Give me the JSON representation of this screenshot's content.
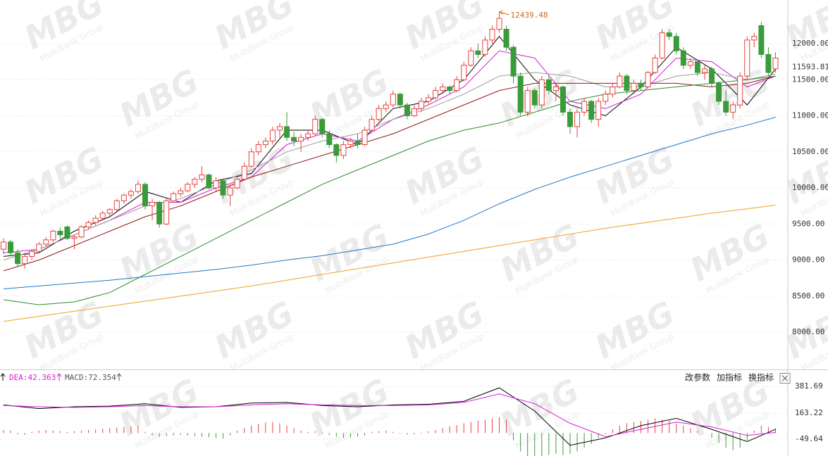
{
  "chart_data": [
    {
      "type": "candlestick",
      "candles": [
        [
          9150,
          9300,
          9080,
          9250
        ],
        [
          9250,
          9280,
          9050,
          9100
        ],
        [
          9100,
          9150,
          8900,
          8950
        ],
        [
          8950,
          9100,
          8880,
          9050
        ],
        [
          9050,
          9150,
          9000,
          9120
        ],
        [
          9120,
          9250,
          9100,
          9220
        ],
        [
          9220,
          9320,
          9180,
          9280
        ],
        [
          9280,
          9420,
          9250,
          9400
        ],
        [
          9400,
          9450,
          9300,
          9350
        ],
        [
          9460,
          9480,
          9280,
          9300
        ],
        [
          9300,
          9350,
          9150,
          9320
        ],
        [
          9320,
          9480,
          9300,
          9460
        ],
        [
          9460,
          9550,
          9420,
          9520
        ],
        [
          9520,
          9620,
          9480,
          9580
        ],
        [
          9580,
          9680,
          9550,
          9650
        ],
        [
          9650,
          9720,
          9600,
          9700
        ],
        [
          9700,
          9850,
          9680,
          9820
        ],
        [
          9820,
          9920,
          9780,
          9900
        ],
        [
          9900,
          9980,
          9850,
          9950
        ],
        [
          9950,
          10100,
          9920,
          10050
        ],
        [
          10050,
          10080,
          9700,
          9750
        ],
        [
          9750,
          9850,
          9550,
          9800
        ],
        [
          9800,
          9820,
          9450,
          9500
        ],
        [
          9500,
          9850,
          9480,
          9820
        ],
        [
          9820,
          9950,
          9800,
          9920
        ],
        [
          9920,
          10000,
          9880,
          9960
        ],
        [
          9960,
          10080,
          9940,
          10050
        ],
        [
          10050,
          10150,
          10000,
          10120
        ],
        [
          10120,
          10300,
          10080,
          10180
        ],
        [
          10180,
          10200,
          9980,
          10000
        ],
        [
          10000,
          10150,
          9950,
          10100
        ],
        [
          10100,
          10120,
          9850,
          9900
        ],
        [
          9900,
          10050,
          9750,
          10000
        ],
        [
          10000,
          10150,
          9980,
          10120
        ],
        [
          10120,
          10350,
          10100,
          10300
        ],
        [
          10300,
          10550,
          10280,
          10500
        ],
        [
          10500,
          10650,
          10450,
          10600
        ],
        [
          10600,
          10700,
          10550,
          10650
        ],
        [
          10650,
          10850,
          10600,
          10800
        ],
        [
          10800,
          10900,
          10700,
          10850
        ],
        [
          10850,
          11050,
          10650,
          10700
        ],
        [
          10700,
          10780,
          10580,
          10650
        ],
        [
          10650,
          10750,
          10500,
          10700
        ],
        [
          10700,
          10800,
          10650,
          10750
        ],
        [
          10750,
          11000,
          10720,
          10950
        ],
        [
          10950,
          10980,
          10700,
          10750
        ],
        [
          10750,
          10800,
          10550,
          10600
        ],
        [
          10600,
          10620,
          10350,
          10450
        ],
        [
          10450,
          10650,
          10400,
          10600
        ],
        [
          10600,
          10700,
          10550,
          10650
        ],
        [
          10650,
          10750,
          10550,
          10600
        ],
        [
          10600,
          10850,
          10580,
          10800
        ],
        [
          10800,
          11000,
          10780,
          10950
        ],
        [
          10950,
          11150,
          10920,
          11100
        ],
        [
          11100,
          11200,
          11050,
          11150
        ],
        [
          11150,
          11350,
          11120,
          11300
        ],
        [
          11300,
          11320,
          11100,
          11150
        ],
        [
          11150,
          11180,
          10950,
          11000
        ],
        [
          11000,
          11150,
          10980,
          11100
        ],
        [
          11100,
          11250,
          11050,
          11200
        ],
        [
          11200,
          11300,
          11150,
          11250
        ],
        [
          11250,
          11400,
          11220,
          11350
        ],
        [
          11350,
          11450,
          11300,
          11400
        ],
        [
          11400,
          11420,
          11300,
          11350
        ],
        [
          11350,
          11550,
          11320,
          11500
        ],
        [
          11500,
          11750,
          11480,
          11700
        ],
        [
          11700,
          11950,
          11680,
          11900
        ],
        [
          11900,
          12000,
          11800,
          11850
        ],
        [
          11850,
          12100,
          11820,
          12050
        ],
        [
          12050,
          12250,
          12000,
          12200
        ],
        [
          12200,
          12439.48,
          12150,
          12350
        ],
        [
          12200,
          12250,
          11900,
          11950
        ],
        [
          11950,
          11980,
          11450,
          11550
        ],
        [
          11550,
          11600,
          11000,
          11050
        ],
        [
          11050,
          11400,
          11000,
          11350
        ],
        [
          11350,
          11380,
          11100,
          11150
        ],
        [
          11150,
          11550,
          11100,
          11500
        ],
        [
          11500,
          11550,
          11300,
          11350
        ],
        [
          11350,
          11450,
          11200,
          11400
        ],
        [
          11400,
          11420,
          11000,
          11050
        ],
        [
          11050,
          11100,
          10750,
          10850
        ],
        [
          10850,
          11100,
          10700,
          11050
        ],
        [
          11050,
          11250,
          11000,
          11200
        ],
        [
          11200,
          11220,
          10900,
          10950
        ],
        [
          10950,
          11250,
          10850,
          11200
        ],
        [
          11200,
          11350,
          11150,
          11300
        ],
        [
          11300,
          11450,
          11250,
          11400
        ],
        [
          11400,
          11600,
          11380,
          11550
        ],
        [
          11550,
          11580,
          11300,
          11350
        ],
        [
          11350,
          11500,
          11300,
          11450
        ],
        [
          11450,
          11500,
          11350,
          11400
        ],
        [
          11400,
          11620,
          11380,
          11600
        ],
        [
          11600,
          11850,
          11580,
          11800
        ],
        [
          11800,
          12200,
          11780,
          12150
        ],
        [
          12150,
          12200,
          12050,
          12100
        ],
        [
          12100,
          12150,
          11850,
          11900
        ],
        [
          11900,
          11950,
          11650,
          11700
        ],
        [
          11700,
          11800,
          11650,
          11750
        ],
        [
          11750,
          11780,
          11550,
          11600
        ],
        [
          11600,
          11700,
          11500,
          11650
        ],
        [
          11650,
          11680,
          11400,
          11450
        ],
        [
          11450,
          11480,
          11150,
          11200
        ],
        [
          11200,
          11350,
          11000,
          11050
        ],
        [
          11050,
          11200,
          10950,
          11150
        ],
        [
          11150,
          11600,
          11100,
          11550
        ],
        [
          11550,
          12100,
          11500,
          12050
        ],
        [
          12050,
          12150,
          11950,
          12100
        ],
        [
          12250,
          12300,
          11800,
          11850
        ],
        [
          11850,
          11950,
          11550,
          11600
        ],
        [
          11650,
          11880,
          11600,
          11800
        ]
      ],
      "up_color": "#e8413c",
      "down_color": "#3a9b3a",
      "ma_x": [
        0,
        5,
        10,
        15,
        20,
        25,
        30,
        35,
        40,
        45,
        50,
        55,
        60,
        65,
        70,
        75,
        80,
        85,
        90,
        95,
        100,
        105,
        109
      ],
      "mas": [
        {
          "color": "#000000",
          "values": [
            9050,
            9100,
            9400,
            9600,
            9950,
            9800,
            10100,
            10200,
            10800,
            10800,
            10600,
            11100,
            11200,
            11500,
            12100,
            11500,
            11150,
            11000,
            11400,
            11950,
            11650,
            11150,
            11650
          ]
        },
        {
          "color": "#d21ed2",
          "values": [
            9100,
            9150,
            9350,
            9550,
            9800,
            9800,
            10000,
            10150,
            10600,
            10750,
            10650,
            10950,
            11150,
            11400,
            11900,
            11800,
            11200,
            11100,
            11300,
            11800,
            11750,
            11400,
            11550
          ]
        },
        {
          "color": "#9a9a9a",
          "values": [
            9000,
            9150,
            9350,
            9550,
            9750,
            9850,
            10050,
            10250,
            10500,
            10650,
            10750,
            10950,
            11100,
            11300,
            11550,
            11600,
            11550,
            11400,
            11400,
            11550,
            11600,
            11500,
            11580
          ]
        },
        {
          "color": "#8b1a1a",
          "values": [
            8850,
            9000,
            9200,
            9400,
            9600,
            9750,
            9950,
            10150,
            10300,
            10450,
            10600,
            10750,
            10950,
            11150,
            11350,
            11450,
            11450,
            11450,
            11450,
            11450,
            11400,
            11450,
            11550
          ]
        },
        {
          "color": "#2e8b2e",
          "values": [
            8450,
            8380,
            8420,
            8550,
            8800,
            9050,
            9300,
            9550,
            9800,
            10050,
            10250,
            10450,
            10650,
            10800,
            10900,
            11050,
            11200,
            11300,
            11350,
            11400,
            11450,
            11500,
            11550
          ]
        },
        {
          "color": "#1f78c8",
          "values": [
            8600,
            8640,
            8680,
            8720,
            8770,
            8820,
            8870,
            8930,
            9000,
            9060,
            9140,
            9220,
            9360,
            9550,
            9780,
            9980,
            10150,
            10300,
            10450,
            10600,
            10750,
            10870,
            10980
          ]
        },
        {
          "color": "#f0a020",
          "values": [
            8150,
            8220,
            8290,
            8360,
            8430,
            8500,
            8570,
            8640,
            8720,
            8800,
            8880,
            8960,
            9040,
            9120,
            9200,
            9280,
            9360,
            9440,
            9510,
            9580,
            9650,
            9710,
            9760
          ]
        }
      ],
      "ylim": [
        7493,
        12605
      ],
      "yticks": [
        {
          "value": 8000,
          "label": "8000.00"
        },
        {
          "value": 8500,
          "label": "8500.00"
        },
        {
          "value": 9000,
          "label": "9000.00"
        },
        {
          "value": 9500,
          "label": "9500.00"
        },
        {
          "value": 10000,
          "label": "10000.00"
        },
        {
          "value": 10500,
          "label": "10500.00"
        },
        {
          "value": 11000,
          "label": "11000.00"
        },
        {
          "value": 11500,
          "label": "11500.00"
        },
        {
          "value": 12000,
          "label": "12000.00"
        }
      ],
      "high_annotation": 12439.48,
      "last_price": 11593.81,
      "grid": true
    },
    {
      "type": "macd",
      "header": [
        "DEA:42.363",
        "MACD:72.354"
      ],
      "hist": [
        25,
        20,
        -10,
        -15,
        10,
        20,
        25,
        20,
        15,
        10,
        15,
        20,
        25,
        30,
        35,
        40,
        45,
        50,
        55,
        60,
        10,
        -20,
        -30,
        -25,
        -20,
        -15,
        -20,
        -25,
        -30,
        -35,
        -40,
        -45,
        -20,
        20,
        40,
        60,
        75,
        85,
        90,
        80,
        60,
        40,
        20,
        10,
        15,
        5,
        -15,
        -30,
        -40,
        -35,
        -30,
        -20,
        10,
        15,
        20,
        10,
        -5,
        -15,
        -10,
        5,
        15,
        25,
        40,
        55,
        65,
        80,
        90,
        100,
        110,
        120,
        130,
        110,
        -60,
        -150,
        -190,
        -200,
        -190,
        -180,
        -170,
        -180,
        -170,
        -150,
        -120,
        -90,
        -40,
        -10,
        30,
        60,
        80,
        90,
        100,
        110,
        120,
        110,
        100,
        80,
        60,
        40,
        20,
        0,
        -40,
        -80,
        -120,
        -140,
        -120,
        -60,
        20,
        60,
        50,
        40
      ],
      "lines_x": [
        0,
        5,
        10,
        15,
        20,
        25,
        30,
        35,
        40,
        45,
        50,
        55,
        60,
        65,
        70,
        75,
        80,
        85,
        90,
        95,
        100,
        105,
        109
      ],
      "lines": [
        {
          "color": "#000000",
          "values": [
            230,
            200,
            215,
            220,
            240,
            210,
            215,
            245,
            250,
            225,
            215,
            230,
            235,
            260,
            370,
            180,
            -100,
            -40,
            60,
            120,
            30,
            -70,
            30
          ]
        },
        {
          "color": "#d21ed2",
          "values": [
            225,
            215,
            210,
            215,
            225,
            215,
            215,
            230,
            240,
            230,
            225,
            225,
            230,
            250,
            320,
            240,
            80,
            -30,
            30,
            90,
            50,
            -20,
            5
          ]
        }
      ],
      "up_color": "#e8413c",
      "down_color": "#3a9b3a",
      "ylim": [
        -188,
        503
      ],
      "yticks": [
        381.69,
        163.22,
        -49.64
      ]
    }
  ],
  "toolbar": {
    "buttons": [
      "改参数",
      "加指标",
      "换指标"
    ]
  },
  "watermark": {
    "logo": "MBG",
    "tagline": "MultiBank Group"
  }
}
